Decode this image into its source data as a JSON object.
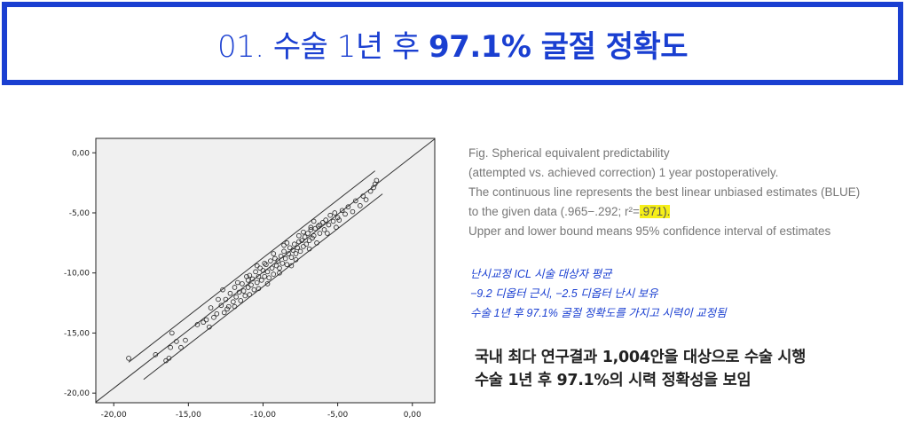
{
  "header": {
    "title_prefix": "01. 수술 1년 후",
    "title_emphasis": "97.1% 굴절 정확도"
  },
  "caption": {
    "lines": [
      "Fig. Spherical equivalent predictability",
      "(attempted vs. achieved correction) 1 year postoperatively.",
      "The continuous line represents the best linear unbiased estimates (BLUE)",
      "to the given data (.965−.292; r²=",
      ".971).",
      "Upper and lower bound means 95% confidence interval of estimates"
    ]
  },
  "notes": {
    "lines": [
      "난시교정 ICL 시술 대상자 평균",
      "−9.2 디옵터 근시, −2.5 디옵터 난시 보유",
      "수술 1년 후 97.1% 굴절 정확도를 가지고 시력이 교정됨"
    ]
  },
  "summary": {
    "lines": [
      "국내 최다 연구결과 1,004안을 대상으로 수술 시행",
      "수술 1년 후 97.1%의 시력 정확성을 보임"
    ]
  },
  "colors": {
    "accent": "#1a3fd1",
    "highlight": "#f6ef19",
    "plot_background": "#f0f0f0"
  },
  "chart_data": {
    "type": "scatter",
    "x_ticks": [
      "-20,00",
      "-15,00",
      "-10,00",
      "-5,00",
      "0,00"
    ],
    "y_ticks": [
      "0,00",
      "-5,00",
      "-10,00",
      "-15,00",
      "-20,00"
    ],
    "xlim": [
      -21.2,
      1.5
    ],
    "ylim": [
      -20.8,
      1.2
    ],
    "grid": false,
    "fit_line": {
      "slope": 0.965,
      "intercept": -0.292
    },
    "confidence_offset": 1.2,
    "points": [
      [
        -19.0,
        -17.1
      ],
      [
        -17.2,
        -16.8
      ],
      [
        -16.5,
        -17.3
      ],
      [
        -16.2,
        -16.2
      ],
      [
        -16.3,
        -17.1
      ],
      [
        -15.5,
        -16.2
      ],
      [
        -15.8,
        -15.7
      ],
      [
        -16.1,
        -15.0
      ],
      [
        -15.2,
        -15.6
      ],
      [
        -14.4,
        -14.3
      ],
      [
        -14.0,
        -14.1
      ],
      [
        -13.6,
        -14.5
      ],
      [
        -13.8,
        -13.9
      ],
      [
        -13.3,
        -13.7
      ],
      [
        -13.5,
        -12.9
      ],
      [
        -13.1,
        -13.4
      ],
      [
        -12.8,
        -12.7
      ],
      [
        -12.6,
        -13.3
      ],
      [
        -12.5,
        -12.2
      ],
      [
        -12.3,
        -12.8
      ],
      [
        -12.2,
        -11.7
      ],
      [
        -12.0,
        -12.4
      ],
      [
        -11.9,
        -11.2
      ],
      [
        -11.8,
        -12.0
      ],
      [
        -11.6,
        -11.6
      ],
      [
        -11.5,
        -12.3
      ],
      [
        -11.4,
        -10.9
      ],
      [
        -11.3,
        -11.5
      ],
      [
        -11.2,
        -11.9
      ],
      [
        -11.0,
        -10.6
      ],
      [
        -11.0,
        -11.2
      ],
      [
        -10.9,
        -10.2
      ],
      [
        -10.8,
        -11.0
      ],
      [
        -10.7,
        -10.5
      ],
      [
        -10.6,
        -11.4
      ],
      [
        -10.5,
        -9.9
      ],
      [
        -10.4,
        -10.8
      ],
      [
        -10.3,
        -10.3
      ],
      [
        -10.2,
        -9.6
      ],
      [
        -10.1,
        -10.6
      ],
      [
        -10.0,
        -9.8
      ],
      [
        -9.9,
        -10.3
      ],
      [
        -9.8,
        -9.3
      ],
      [
        -9.7,
        -9.9
      ],
      [
        -9.6,
        -10.4
      ],
      [
        -9.5,
        -9.0
      ],
      [
        -9.4,
        -9.6
      ],
      [
        -9.3,
        -10.1
      ],
      [
        -9.2,
        -8.8
      ],
      [
        -9.1,
        -9.4
      ],
      [
        -9.0,
        -9.0
      ],
      [
        -8.9,
        -9.6
      ],
      [
        -8.8,
        -8.6
      ],
      [
        -8.7,
        -9.2
      ],
      [
        -8.6,
        -8.2
      ],
      [
        -8.5,
        -8.8
      ],
      [
        -8.4,
        -9.3
      ],
      [
        -8.3,
        -8.4
      ],
      [
        -8.2,
        -7.9
      ],
      [
        -8.1,
        -8.7
      ],
      [
        -8.0,
        -8.1
      ],
      [
        -7.9,
        -7.6
      ],
      [
        -7.8,
        -8.4
      ],
      [
        -7.7,
        -7.9
      ],
      [
        -7.6,
        -7.4
      ],
      [
        -7.5,
        -8.2
      ],
      [
        -7.4,
        -7.3
      ],
      [
        -7.3,
        -7.8
      ],
      [
        -7.2,
        -7.0
      ],
      [
        -7.1,
        -7.6
      ],
      [
        -7.0,
        -6.7
      ],
      [
        -6.9,
        -7.3
      ],
      [
        -6.8,
        -6.4
      ],
      [
        -6.7,
        -7.1
      ],
      [
        -6.6,
        -6.9
      ],
      [
        -6.5,
        -6.3
      ],
      [
        -6.4,
        -7.5
      ],
      [
        -6.3,
        -6.1
      ],
      [
        -6.2,
        -6.7
      ],
      [
        -6.0,
        -5.8
      ],
      [
        -5.9,
        -6.4
      ],
      [
        -5.8,
        -5.6
      ],
      [
        -5.6,
        -6.0
      ],
      [
        -5.5,
        -5.2
      ],
      [
        -5.3,
        -5.7
      ],
      [
        -5.2,
        -5.0
      ],
      [
        -5.0,
        -5.4
      ],
      [
        -4.9,
        -5.6
      ],
      [
        -4.7,
        -4.8
      ],
      [
        -4.5,
        -5.1
      ],
      [
        -4.3,
        -4.5
      ],
      [
        -4.0,
        -4.9
      ],
      [
        -3.8,
        -4.0
      ],
      [
        -3.5,
        -4.4
      ],
      [
        -3.3,
        -3.6
      ],
      [
        -3.1,
        -3.9
      ],
      [
        -2.8,
        -3.2
      ],
      [
        -2.6,
        -2.9
      ],
      [
        -2.5,
        -2.6
      ],
      [
        -2.4,
        -2.3
      ],
      [
        -12.7,
        -11.4
      ],
      [
        -11.9,
        -12.8
      ],
      [
        -10.4,
        -9.4
      ],
      [
        -9.7,
        -10.9
      ],
      [
        -8.6,
        -7.7
      ],
      [
        -8.1,
        -9.4
      ],
      [
        -7.3,
        -6.6
      ],
      [
        -6.9,
        -8.0
      ],
      [
        -6.2,
        -6.0
      ],
      [
        -5.7,
        -6.7
      ],
      [
        -10.9,
        -11.8
      ],
      [
        -11.7,
        -10.8
      ],
      [
        -9.3,
        -8.4
      ],
      [
        -8.9,
        -10.0
      ],
      [
        -7.6,
        -6.9
      ],
      [
        -12.4,
        -13.0
      ],
      [
        -13.0,
        -12.2
      ],
      [
        -6.6,
        -5.7
      ],
      [
        -5.1,
        -6.2
      ],
      [
        -9.9,
        -9.2
      ],
      [
        -11.1,
        -10.3
      ],
      [
        -10.3,
        -11.3
      ],
      [
        -8.4,
        -7.5
      ],
      [
        -7.8,
        -8.9
      ],
      [
        -6.8,
        -6.2
      ]
    ]
  }
}
